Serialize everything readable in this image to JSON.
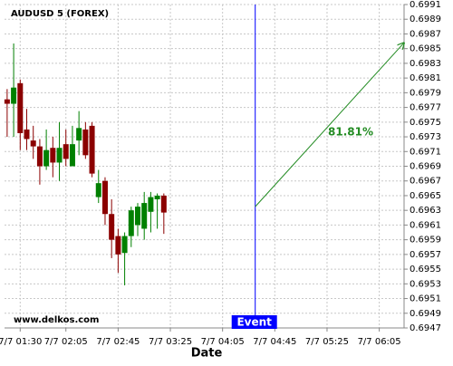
{
  "chart_data": {
    "type": "candlestick",
    "title": "AUDUSD 5 (FOREX)",
    "x_label": "Date",
    "watermark": "www.delkos.com",
    "x": [
      "7/7 01:20",
      "7/7 01:25",
      "7/7 01:30",
      "7/7 01:35",
      "7/7 01:40",
      "7/7 01:45",
      "7/7 01:50",
      "7/7 01:55",
      "7/7 02:00",
      "7/7 02:05",
      "7/7 02:10",
      "7/7 02:15",
      "7/7 02:20",
      "7/7 02:25",
      "7/7 02:30",
      "7/7 02:35",
      "7/7 02:40",
      "7/7 02:45",
      "7/7 02:50",
      "7/7 02:55",
      "7/7 03:00",
      "7/7 03:05",
      "7/7 03:10",
      "7/7 03:15",
      "7/7 03:20"
    ],
    "open": [
      0.69781,
      0.69775,
      0.69803,
      0.6974,
      0.69725,
      0.69717,
      0.6969,
      0.69715,
      0.69695,
      0.6972,
      0.6969,
      0.69725,
      0.6974,
      0.69745,
      0.69648,
      0.6967,
      0.69625,
      0.69595,
      0.69572,
      0.69595,
      0.6961,
      0.69605,
      0.69628,
      0.69645,
      0.6965
    ],
    "high": [
      0.69795,
      0.69857,
      0.69808,
      0.69768,
      0.69745,
      0.69727,
      0.6974,
      0.6973,
      0.6975,
      0.6974,
      0.69745,
      0.69765,
      0.6975,
      0.6975,
      0.69685,
      0.69675,
      0.69645,
      0.69605,
      0.696,
      0.69635,
      0.6964,
      0.69655,
      0.69655,
      0.69653,
      0.69653
    ],
    "low": [
      0.6973,
      0.6973,
      0.69712,
      0.69712,
      0.697,
      0.69665,
      0.69685,
      0.69675,
      0.6967,
      0.6969,
      0.6969,
      0.69705,
      0.697,
      0.69675,
      0.6964,
      0.6961,
      0.69565,
      0.69545,
      0.69528,
      0.6958,
      0.69595,
      0.6959,
      0.696,
      0.69605,
      0.69598
    ],
    "close": [
      0.69775,
      0.69797,
      0.69735,
      0.69727,
      0.69717,
      0.6969,
      0.69712,
      0.69695,
      0.69715,
      0.697,
      0.6972,
      0.69742,
      0.69705,
      0.6968,
      0.69667,
      0.69625,
      0.6959,
      0.6957,
      0.69595,
      0.6963,
      0.69635,
      0.6964,
      0.69648,
      0.6965,
      0.69627
    ],
    "up_color": "#008000",
    "down_color": "#8b0000",
    "xlim": [
      "7/7 01:18",
      "7/7 06:24"
    ],
    "xticks": [
      "7/7 01:30",
      "7/7 02:05",
      "7/7 02:45",
      "7/7 03:25",
      "7/7 04:05",
      "7/7 04:45",
      "7/7 05:25",
      "7/7 06:05"
    ],
    "ylim": [
      0.6947,
      0.6991
    ],
    "yticks": [
      0.6947,
      0.6949,
      0.6951,
      0.6953,
      0.6955,
      0.6957,
      0.6959,
      0.6961,
      0.6963,
      0.6965,
      0.6967,
      0.6969,
      0.6971,
      0.6973,
      0.6975,
      0.6977,
      0.6979,
      0.6981,
      0.6983,
      0.6985,
      0.6987,
      0.6989,
      0.6991
    ],
    "grid": true,
    "event": {
      "label": "Event",
      "x": "7/7 04:30",
      "color": "#0000ff"
    },
    "arrow": {
      "x": [
        "7/7 04:30",
        "7/7 06:24"
      ],
      "y": [
        0.69635,
        0.69858
      ],
      "color": "#228b22",
      "label": "81.81%"
    }
  }
}
